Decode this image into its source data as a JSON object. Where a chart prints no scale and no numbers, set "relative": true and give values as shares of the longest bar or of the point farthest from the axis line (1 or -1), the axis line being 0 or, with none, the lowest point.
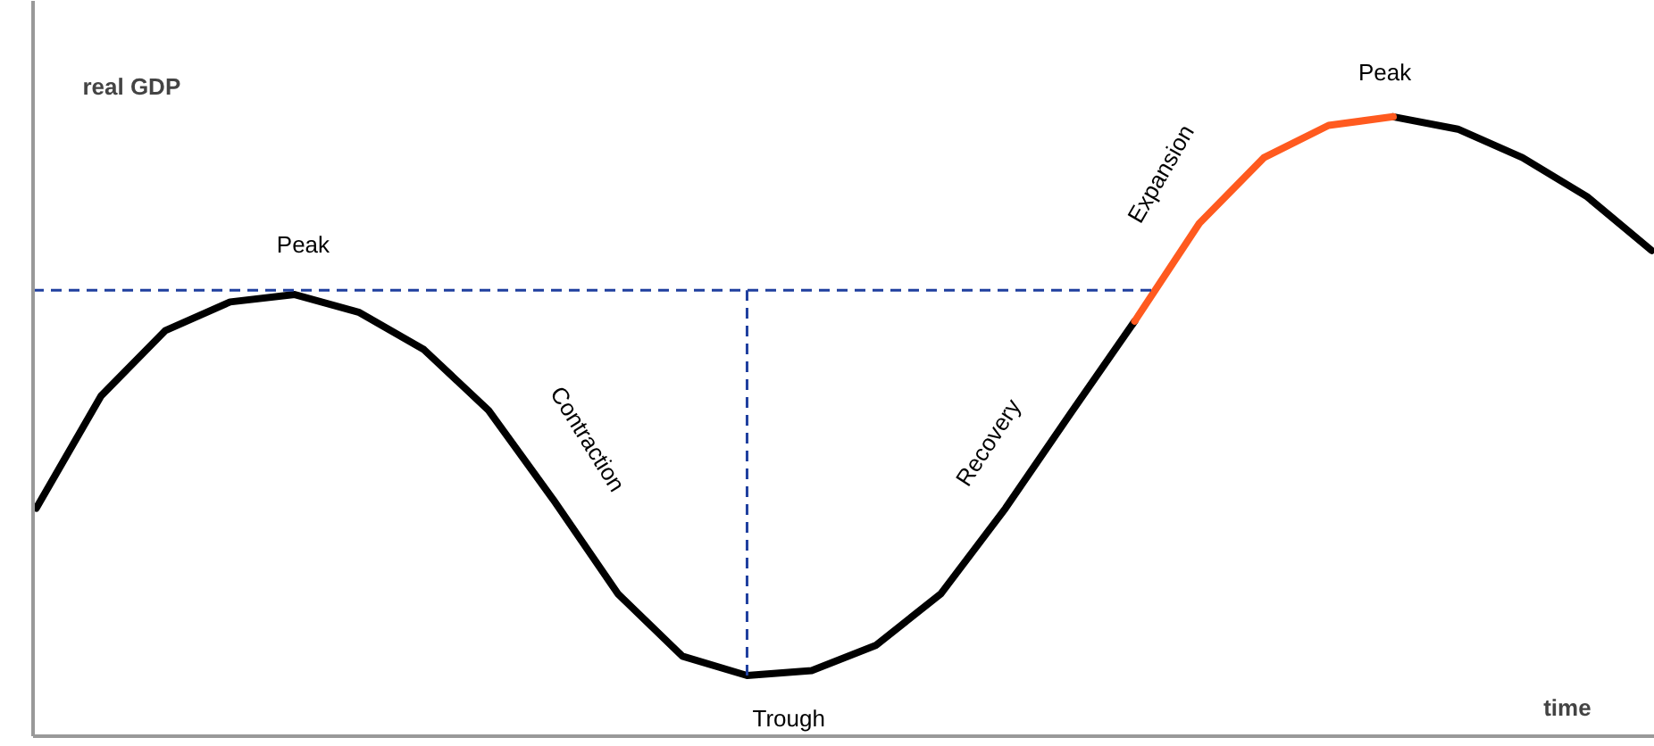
{
  "chart_data": {
    "type": "line",
    "relative": true,
    "xlabel": "time",
    "ylabel": "real GDP",
    "categories": [
      null,
      null,
      null,
      null,
      null,
      null,
      null,
      null,
      null,
      null,
      null,
      null,
      null,
      null,
      null,
      null,
      null,
      null,
      null,
      null,
      null,
      null,
      null,
      null,
      null,
      null
    ],
    "series": [
      {
        "color": "#000000",
        "values": [
          0.368,
          0.549,
          0.655,
          0.701,
          0.713,
          0.684,
          0.624,
          0.526,
          0.382,
          0.23,
          0.129,
          0.098,
          0.106,
          0.147,
          0.23,
          0.368,
          0.52,
          0.67,
          null,
          null,
          null,
          1,
          0.98,
          0.934,
          0.871,
          0.784
        ]
      },
      {
        "color": "#ff5a1f",
        "values": [
          null,
          null,
          null,
          null,
          null,
          null,
          null,
          null,
          null,
          null,
          null,
          null,
          null,
          null,
          null,
          null,
          null,
          0.67,
          0.828,
          0.934,
          0.986,
          1,
          null,
          null,
          null,
          null
        ]
      }
    ],
    "annotations": [
      "Peak",
      "Contraction",
      "Trough",
      "Recovery",
      "Expansion",
      "Peak"
    ],
    "ref_lines": [
      {
        "axis": "y",
        "value": 0.72,
        "color": "#1f3f9f",
        "line_style": "dashed"
      }
    ]
  }
}
